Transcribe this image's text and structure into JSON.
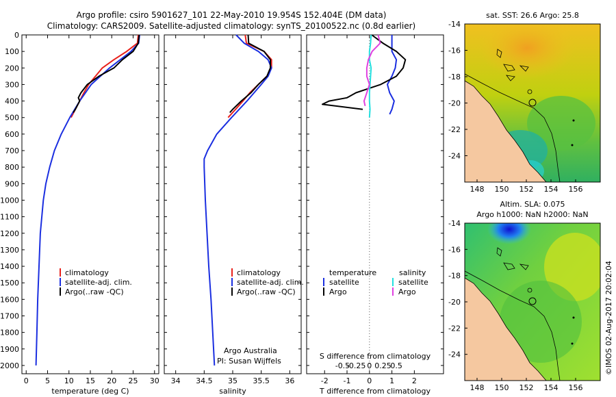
{
  "header": {
    "line1": "Argo profile: csiro 5901627_101 22-May-2010 19.954S 152.404E (DM data)",
    "line2": "Climatology: CARS2009. Satellite-adjusted climatology: synTS_20100522.nc (0.8d earlier)"
  },
  "stamp": "©IMOS 02-Aug-2017 20:02:04",
  "colors": {
    "climatology": "#e8201a",
    "satellite": "#1a2ee0",
    "argo": "#000000",
    "satellite_diff": "#22e0e0",
    "argo_diff": "#e040e0",
    "land": "#f5c8a0"
  },
  "chart_data": [
    {
      "type": "line",
      "name": "temperature-panel",
      "xlabel": "temperature (deg C)",
      "ylabel": "",
      "xlim": [
        -1,
        31
      ],
      "ylim": [
        2050,
        0
      ],
      "y_inverted": true,
      "xticks": [
        "0",
        "5",
        "10",
        "15",
        "20",
        "25",
        "30"
      ],
      "yticks": [
        "0",
        "100",
        "200",
        "300",
        "400",
        "500",
        "600",
        "700",
        "800",
        "900",
        "1000",
        "1100",
        "1200",
        "1300",
        "1400",
        "1500",
        "1600",
        "1700",
        "1800",
        "1900",
        "2000"
      ],
      "legend": [
        "climatology",
        "satellite-adj. clim.",
        "Argo(..raw -QC)"
      ],
      "series": [
        {
          "name": "climatology",
          "depth": [
            0,
            50,
            100,
            150,
            200,
            250,
            300,
            350,
            400,
            450,
            500
          ],
          "values": [
            26.2,
            26.0,
            23.5,
            20.5,
            17.8,
            16.2,
            14.6,
            13.5,
            12.5,
            11.5,
            10.5
          ]
        },
        {
          "name": "satellite-adj. clim.",
          "depth": [
            0,
            50,
            100,
            200,
            300,
            400,
            500,
            600,
            700,
            800,
            900,
            1000,
            1200,
            1400,
            1600,
            1800,
            2000
          ],
          "values": [
            26.5,
            26.3,
            24.5,
            19.5,
            15.2,
            12.5,
            10.2,
            8.2,
            6.6,
            5.5,
            4.6,
            4.0,
            3.3,
            3.0,
            2.7,
            2.5,
            2.3
          ]
        },
        {
          "name": "Argo(..raw -QC)",
          "depth": [
            0,
            50,
            100,
            150,
            200,
            250,
            300,
            350,
            380,
            400,
            450,
            470
          ],
          "values": [
            26.4,
            26.2,
            25.0,
            22.5,
            20.5,
            17.0,
            14.3,
            12.8,
            12.2,
            12.5,
            11.5,
            11.0
          ]
        }
      ]
    },
    {
      "type": "line",
      "name": "salinity-panel",
      "xlabel": "salinity",
      "ylabel": "",
      "xlim": [
        33.8,
        36.2
      ],
      "ylim": [
        2050,
        0
      ],
      "y_inverted": true,
      "xticks": [
        "34",
        "34.5",
        "35",
        "35.5",
        "36"
      ],
      "legend": [
        "climatology",
        "satellite-adj. clim.",
        "Argo(..raw -QC)"
      ],
      "annotation": [
        "Argo Australia",
        "PI: Susan Wijffels"
      ],
      "series": [
        {
          "name": "climatology",
          "depth": [
            0,
            50,
            100,
            150,
            200,
            250,
            300,
            350,
            400,
            450,
            500
          ],
          "values": [
            35.22,
            35.24,
            35.55,
            35.68,
            35.68,
            35.6,
            35.45,
            35.3,
            35.18,
            35.05,
            34.92
          ]
        },
        {
          "name": "satellite-adj. clim.",
          "depth": [
            0,
            50,
            100,
            150,
            200,
            250,
            300,
            400,
            500,
            600,
            700,
            750,
            800,
            1000,
            1200,
            1400,
            1600,
            1800,
            2000
          ],
          "values": [
            35.06,
            35.2,
            35.45,
            35.62,
            35.68,
            35.62,
            35.5,
            35.25,
            34.98,
            34.72,
            34.56,
            34.5,
            34.5,
            34.52,
            34.55,
            34.58,
            34.62,
            34.65,
            34.68
          ]
        },
        {
          "name": "Argo(..raw -QC)",
          "depth": [
            0,
            50,
            100,
            150,
            200,
            250,
            300,
            350,
            400,
            450,
            470
          ],
          "values": [
            35.27,
            35.28,
            35.55,
            35.66,
            35.66,
            35.6,
            35.45,
            35.32,
            35.15,
            35.0,
            34.95
          ]
        }
      ]
    },
    {
      "type": "line",
      "name": "difference-panel",
      "xlabel": "T difference from climatology",
      "top_label": "S difference from climatology",
      "xlim": [
        -2.8,
        3.3
      ],
      "ylim": [
        2050,
        0
      ],
      "y_inverted": true,
      "xticks": [
        "-2",
        "-1",
        "0",
        "1",
        "2"
      ],
      "top_ticks": [
        "-0.5",
        "-0.25",
        "0",
        "0.25",
        "0.5"
      ],
      "legend": {
        "headers": [
          "temperature",
          "salinity"
        ],
        "entries": [
          "satellite",
          "Argo",
          "satellite",
          "Argo"
        ]
      },
      "series": [
        {
          "name": "T satellite",
          "depth": [
            0,
            50,
            100,
            150,
            200,
            250,
            300,
            350,
            400,
            450,
            480
          ],
          "values": [
            1.0,
            1.0,
            1.0,
            1.2,
            1.15,
            1.0,
            0.8,
            0.9,
            1.1,
            1.0,
            0.9
          ]
        },
        {
          "name": "T Argo",
          "depth": [
            0,
            50,
            100,
            150,
            200,
            250,
            300,
            350,
            380,
            400,
            420,
            450
          ],
          "values": [
            0.1,
            0.6,
            1.2,
            1.6,
            1.5,
            1.2,
            0.5,
            -0.6,
            -1.0,
            -1.8,
            -2.1,
            -0.3
          ]
        },
        {
          "name": "S satellite",
          "depth": [
            0,
            50,
            100,
            150,
            200,
            250,
            300,
            350,
            400,
            450,
            500
          ],
          "values": [
            0.03,
            0.02,
            0.0,
            0.0,
            0.03,
            0.02,
            0.01,
            0.0,
            0.0,
            0.01,
            0.0
          ]
        },
        {
          "name": "S Argo",
          "depth": [
            0,
            50,
            100,
            150,
            200,
            250,
            300,
            350,
            400,
            430
          ],
          "values": [
            0.16,
            0.2,
            0.05,
            -0.02,
            -0.05,
            -0.05,
            0.0,
            -0.05,
            -0.1,
            -0.08
          ]
        }
      ]
    },
    {
      "type": "heatmap",
      "name": "sst-map",
      "title": "sat. SST: 26.6  Argo: 25.8",
      "xticks": [
        "148",
        "150",
        "152",
        "154",
        "156"
      ],
      "yticks": [
        "-14",
        "-16",
        "-18",
        "-20",
        "-22",
        "-24"
      ],
      "xlim": [
        147,
        158
      ],
      "ylim": [
        -26,
        -14
      ]
    },
    {
      "type": "heatmap",
      "name": "sla-map",
      "title": [
        "Altim. SLA: 0.075",
        "Argo h1000: NaN  h2000: NaN"
      ],
      "xticks": [
        "148",
        "150",
        "152",
        "154",
        "156"
      ],
      "yticks": [
        "-14",
        "-16",
        "-18",
        "-20",
        "-22",
        "-24"
      ],
      "xlim": [
        147,
        158
      ],
      "ylim": [
        -26,
        -14
      ]
    }
  ]
}
